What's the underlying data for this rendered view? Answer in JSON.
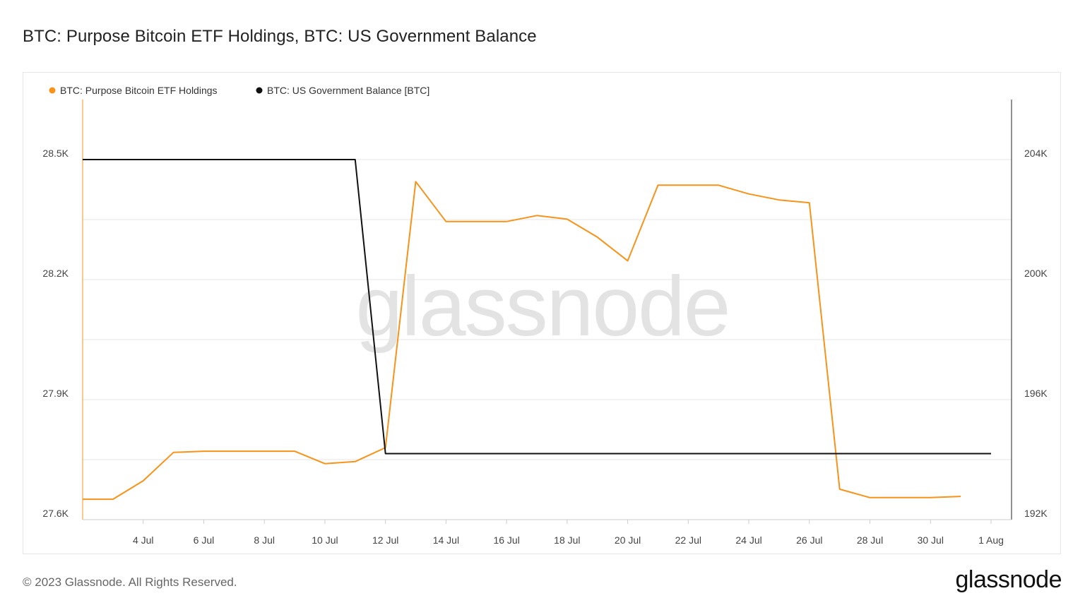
{
  "title": "BTC: Purpose Bitcoin ETF Holdings, BTC: US Government Balance",
  "watermark": "glassnode",
  "footer": {
    "copyright": "© 2023 Glassnode. All Rights Reserved.",
    "logo": "glassnode"
  },
  "colors": {
    "etf": "#f7931a",
    "gov": "#111111",
    "grid": "#e6e6e6"
  },
  "chart_data": {
    "type": "line",
    "x_range": [
      "2023-07-02",
      "2023-08-01"
    ],
    "x_ticks": [
      {
        "date": "2023-07-04",
        "label": "4 Jul"
      },
      {
        "date": "2023-07-06",
        "label": "6 Jul"
      },
      {
        "date": "2023-07-08",
        "label": "8 Jul"
      },
      {
        "date": "2023-07-10",
        "label": "10 Jul"
      },
      {
        "date": "2023-07-12",
        "label": "12 Jul"
      },
      {
        "date": "2023-07-14",
        "label": "14 Jul"
      },
      {
        "date": "2023-07-16",
        "label": "16 Jul"
      },
      {
        "date": "2023-07-18",
        "label": "18 Jul"
      },
      {
        "date": "2023-07-20",
        "label": "20 Jul"
      },
      {
        "date": "2023-07-22",
        "label": "22 Jul"
      },
      {
        "date": "2023-07-24",
        "label": "24 Jul"
      },
      {
        "date": "2023-07-26",
        "label": "26 Jul"
      },
      {
        "date": "2023-07-28",
        "label": "28 Jul"
      },
      {
        "date": "2023-07-30",
        "label": "30 Jul"
      },
      {
        "date": "2023-08-01",
        "label": "1 Aug"
      }
    ],
    "y_left": {
      "range": [
        27600,
        28650
      ],
      "ticks": [
        {
          "value": 27600,
          "label": "27.6K"
        },
        {
          "value": 27900,
          "label": "27.9K"
        },
        {
          "value": 28200,
          "label": "28.2K"
        },
        {
          "value": 28500,
          "label": "28.5K"
        }
      ],
      "grid_values": [
        27600,
        27750,
        27900,
        28050,
        28200,
        28350,
        28500
      ]
    },
    "y_right": {
      "range": [
        192000,
        206000
      ],
      "ticks": [
        {
          "value": 192000,
          "label": "192K"
        },
        {
          "value": 196000,
          "label": "196K"
        },
        {
          "value": 200000,
          "label": "200K"
        },
        {
          "value": 204000,
          "label": "204K"
        }
      ]
    },
    "grid": true,
    "legend_position": "top-left",
    "series": [
      {
        "name": "BTC: Purpose Bitcoin ETF Holdings",
        "axis": "left",
        "color": "#f7931a",
        "points": [
          [
            "2023-07-02",
            27651
          ],
          [
            "2023-07-03",
            27651
          ],
          [
            "2023-07-04",
            27697
          ],
          [
            "2023-07-05",
            27768
          ],
          [
            "2023-07-06",
            27771
          ],
          [
            "2023-07-07",
            27771
          ],
          [
            "2023-07-08",
            27771
          ],
          [
            "2023-07-09",
            27771
          ],
          [
            "2023-07-10",
            27740
          ],
          [
            "2023-07-11",
            27745
          ],
          [
            "2023-07-12",
            27780
          ],
          [
            "2023-07-13",
            28445
          ],
          [
            "2023-07-14",
            28345
          ],
          [
            "2023-07-15",
            28345
          ],
          [
            "2023-07-16",
            28345
          ],
          [
            "2023-07-17",
            28360
          ],
          [
            "2023-07-18",
            28351
          ],
          [
            "2023-07-19",
            28306
          ],
          [
            "2023-07-20",
            28247
          ],
          [
            "2023-07-21",
            28436
          ],
          [
            "2023-07-22",
            28436
          ],
          [
            "2023-07-23",
            28436
          ],
          [
            "2023-07-24",
            28414
          ],
          [
            "2023-07-25",
            28399
          ],
          [
            "2023-07-26",
            28392
          ],
          [
            "2023-07-27",
            27676
          ],
          [
            "2023-07-28",
            27655
          ],
          [
            "2023-07-29",
            27655
          ],
          [
            "2023-07-30",
            27655
          ],
          [
            "2023-07-31",
            27658
          ]
        ]
      },
      {
        "name": "BTC: US Government Balance [BTC]",
        "axis": "right",
        "color": "#111111",
        "points": [
          [
            "2023-07-02",
            204000
          ],
          [
            "2023-07-11",
            204000
          ],
          [
            "2023-07-12",
            194200
          ],
          [
            "2023-08-01",
            194200
          ]
        ]
      }
    ]
  }
}
